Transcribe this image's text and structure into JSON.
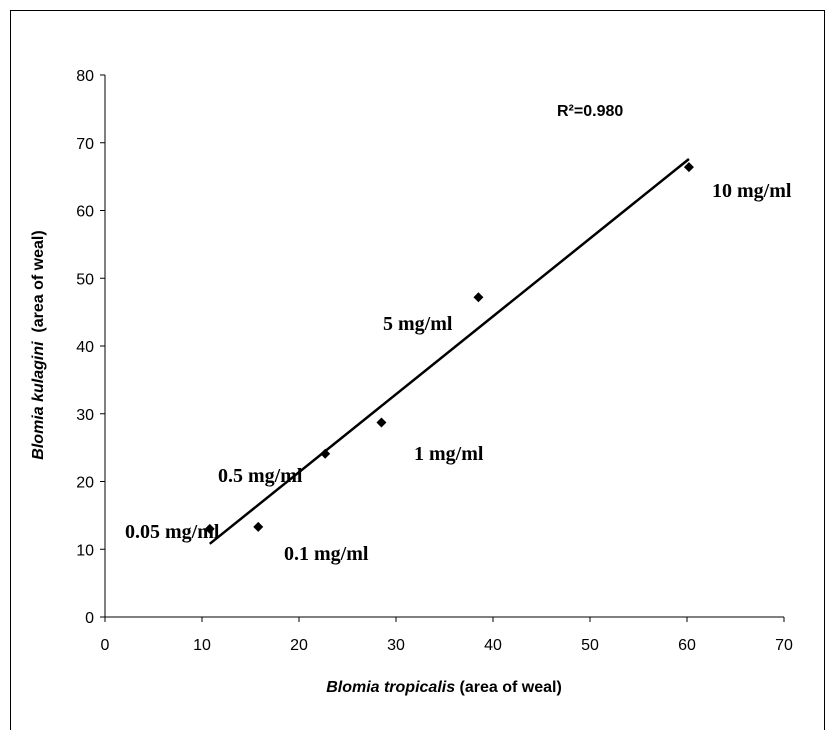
{
  "chart_data": {
    "type": "scatter",
    "x_axis": {
      "label_italic": "Blomia tropicalis",
      "label_rest": " (area of weal)",
      "range": [
        0,
        70
      ],
      "ticks": [
        0,
        10,
        20,
        30,
        40,
        50,
        60,
        70
      ]
    },
    "y_axis": {
      "label_italic": "Blomia kulagini",
      "label_rest": "  (area of weal)",
      "range": [
        0,
        80
      ],
      "ticks": [
        0,
        10,
        20,
        30,
        40,
        50,
        60,
        70,
        80
      ]
    },
    "points": [
      {
        "x": 10.8,
        "y": 13.0,
        "label": "0.05 mg/ml"
      },
      {
        "x": 15.8,
        "y": 13.3,
        "label": "0.1 mg/ml"
      },
      {
        "x": 22.7,
        "y": 24.1,
        "label": "0.5 mg/ml"
      },
      {
        "x": 28.5,
        "y": 28.7,
        "label": "1 mg/ml"
      },
      {
        "x": 38.5,
        "y": 47.2,
        "label": "5 mg/ml"
      },
      {
        "x": 60.2,
        "y": 66.4,
        "label": "10 mg/ml"
      }
    ],
    "trendline": {
      "x": [
        10.8,
        60.2
      ],
      "y": [
        10.8,
        67.6
      ]
    },
    "r_squared_text": "R²=0.980",
    "grid": false,
    "legend": "none",
    "marker": "diamond",
    "color": "#000000"
  }
}
